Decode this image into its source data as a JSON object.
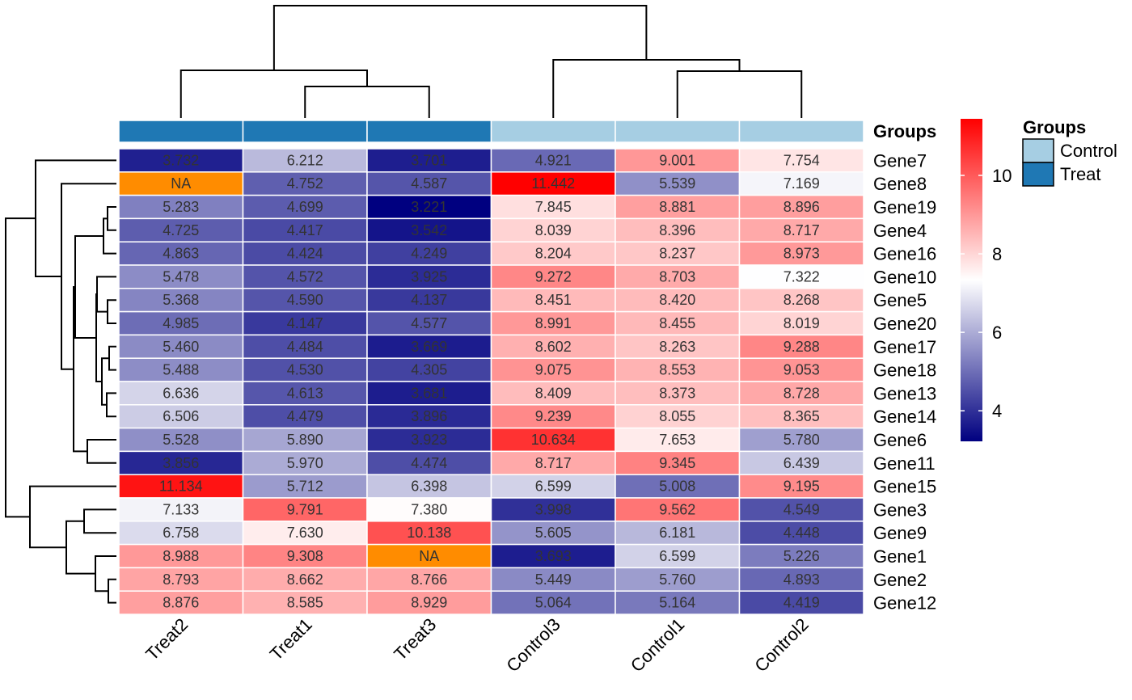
{
  "chart_data": {
    "type": "heatmap",
    "columns": [
      "Treat2",
      "Treat1",
      "Treat3",
      "Control3",
      "Control1",
      "Control2"
    ],
    "column_groups": [
      "Treat",
      "Treat",
      "Treat",
      "Control",
      "Control",
      "Control"
    ],
    "rows": [
      "Gene7",
      "Gene8",
      "Gene19",
      "Gene4",
      "Gene16",
      "Gene10",
      "Gene5",
      "Gene20",
      "Gene17",
      "Gene18",
      "Gene13",
      "Gene14",
      "Gene6",
      "Gene11",
      "Gene15",
      "Gene3",
      "Gene9",
      "Gene1",
      "Gene2",
      "Gene12"
    ],
    "values": [
      [
        3.732,
        6.212,
        3.701,
        4.921,
        9.001,
        7.754
      ],
      [
        null,
        4.752,
        4.587,
        11.442,
        5.539,
        7.169
      ],
      [
        5.283,
        4.699,
        3.221,
        7.845,
        8.881,
        8.896
      ],
      [
        4.725,
        4.417,
        3.542,
        8.039,
        8.396,
        8.717
      ],
      [
        4.863,
        4.424,
        4.249,
        8.204,
        8.237,
        8.973
      ],
      [
        5.478,
        4.572,
        3.925,
        9.272,
        8.703,
        7.322
      ],
      [
        5.368,
        4.59,
        4.137,
        8.451,
        8.42,
        8.268
      ],
      [
        4.985,
        4.147,
        4.577,
        8.991,
        8.455,
        8.019
      ],
      [
        5.46,
        4.484,
        3.669,
        8.602,
        8.263,
        9.288
      ],
      [
        5.488,
        4.53,
        4.305,
        9.075,
        8.553,
        9.053
      ],
      [
        6.636,
        4.613,
        3.681,
        8.409,
        8.373,
        8.728
      ],
      [
        6.506,
        4.479,
        3.896,
        9.239,
        8.055,
        8.365
      ],
      [
        5.528,
        5.89,
        3.923,
        10.634,
        7.653,
        5.78
      ],
      [
        3.856,
        5.97,
        4.474,
        8.717,
        9.345,
        6.439
      ],
      [
        11.134,
        5.712,
        6.398,
        6.599,
        5.008,
        9.195
      ],
      [
        7.133,
        9.791,
        7.38,
        3.998,
        9.562,
        4.549
      ],
      [
        6.758,
        7.63,
        10.138,
        5.605,
        6.181,
        4.448
      ],
      [
        8.988,
        9.308,
        null,
        3.693,
        6.599,
        5.226
      ],
      [
        8.793,
        8.662,
        8.766,
        5.449,
        5.76,
        4.893
      ],
      [
        8.876,
        8.585,
        8.929,
        5.064,
        5.164,
        4.419
      ]
    ],
    "na_label": "NA",
    "annotation_label": "Groups",
    "group_legend": {
      "title": "Groups",
      "items": [
        {
          "name": "Control",
          "color": "#a6cee3"
        },
        {
          "name": "Treat",
          "color": "#1f78b4"
        }
      ]
    },
    "color_scale": {
      "min": 3.221,
      "mid": 7.332,
      "max": 11.442,
      "low_color": "#000080",
      "mid_color": "#ffffff",
      "high_color": "#ff0000",
      "na_color": "#ff8c00",
      "ticks": [
        "4",
        "6",
        "8",
        "10"
      ]
    }
  }
}
